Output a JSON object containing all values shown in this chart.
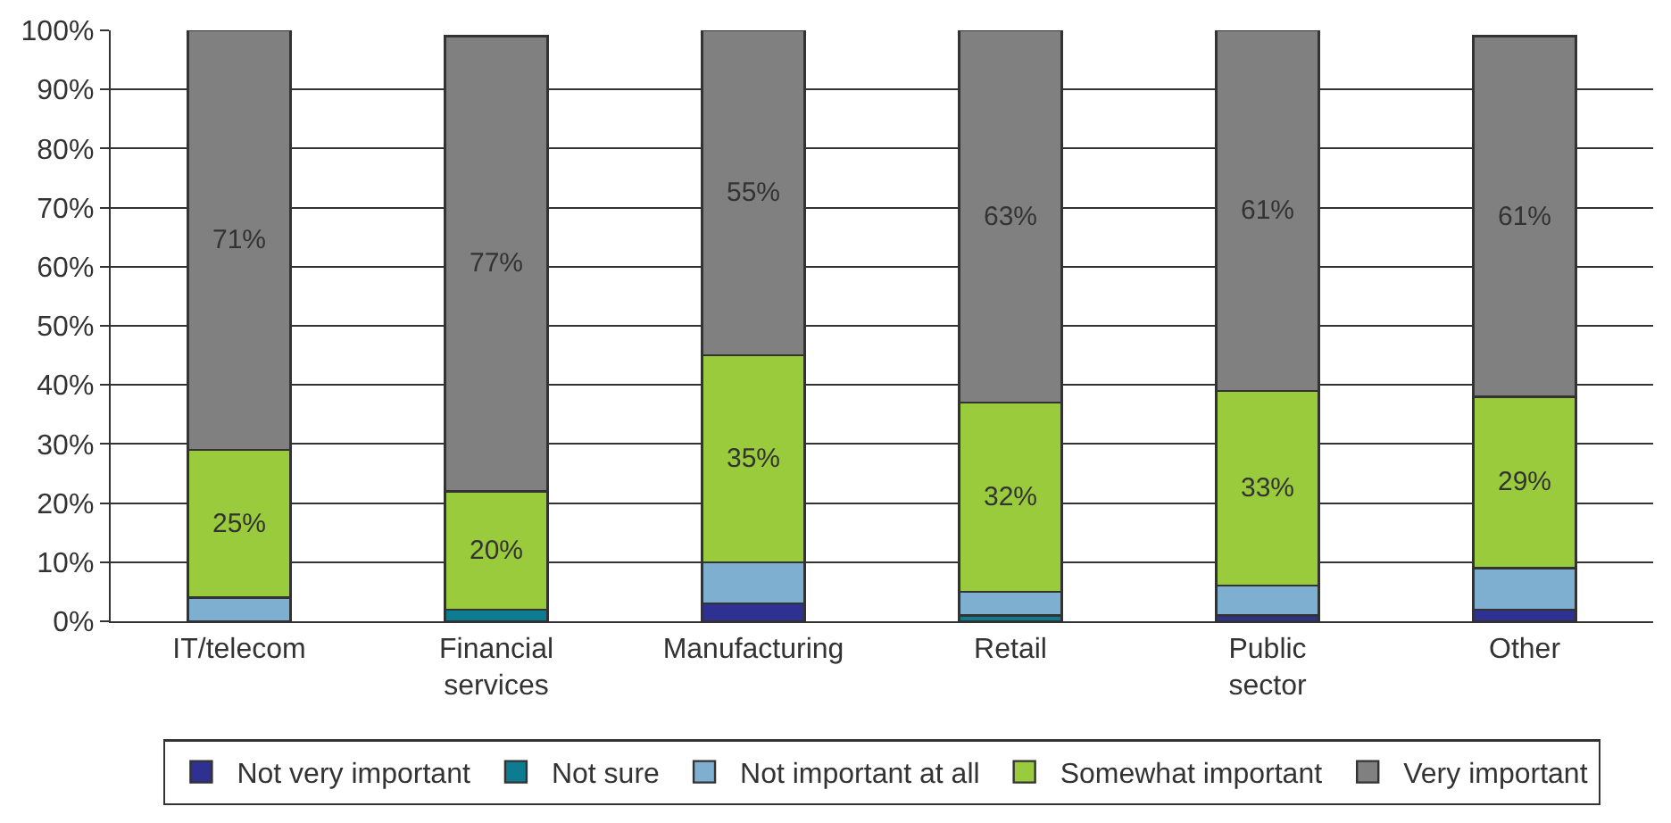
{
  "chart_data": {
    "type": "bar",
    "stacked": true,
    "categories": [
      "IT/telecom",
      "Financial services",
      "Manufacturing",
      "Retail",
      "Public sector",
      "Other"
    ],
    "series": [
      {
        "name": "Not very important",
        "color": "#2e3192",
        "values": [
          0,
          0,
          3,
          0,
          1,
          2
        ]
      },
      {
        "name": "Not sure",
        "color": "#0e7c90",
        "values": [
          0,
          2,
          0,
          1,
          0,
          0
        ]
      },
      {
        "name": "Not important at all",
        "color": "#7eaed0",
        "values": [
          4,
          0,
          7,
          4,
          5,
          7
        ]
      },
      {
        "name": "Somewhat important",
        "color": "#9acb3c",
        "values": [
          25,
          20,
          35,
          32,
          33,
          29
        ],
        "value_labels": [
          "25%",
          "20%",
          "35%",
          "32%",
          "33%",
          "29%"
        ]
      },
      {
        "name": "Very important",
        "color": "#808080",
        "values": [
          71,
          77,
          55,
          63,
          61,
          61
        ],
        "value_labels": [
          "71%",
          "77%",
          "55%",
          "63%",
          "61%",
          "61%"
        ]
      }
    ],
    "ylim": [
      0,
      100
    ],
    "yticks": [
      {
        "value": 0,
        "label": "0%"
      },
      {
        "value": 10,
        "label": "10%"
      },
      {
        "value": 20,
        "label": "20%"
      },
      {
        "value": 30,
        "label": "30%"
      },
      {
        "value": 40,
        "label": "40%"
      },
      {
        "value": 50,
        "label": "50%"
      },
      {
        "value": 60,
        "label": "60%"
      },
      {
        "value": 70,
        "label": "70%"
      },
      {
        "value": 80,
        "label": "80%"
      },
      {
        "value": 90,
        "label": "90%"
      },
      {
        "value": 100,
        "label": "100%"
      }
    ],
    "grid": "y",
    "legend": "bottom"
  }
}
